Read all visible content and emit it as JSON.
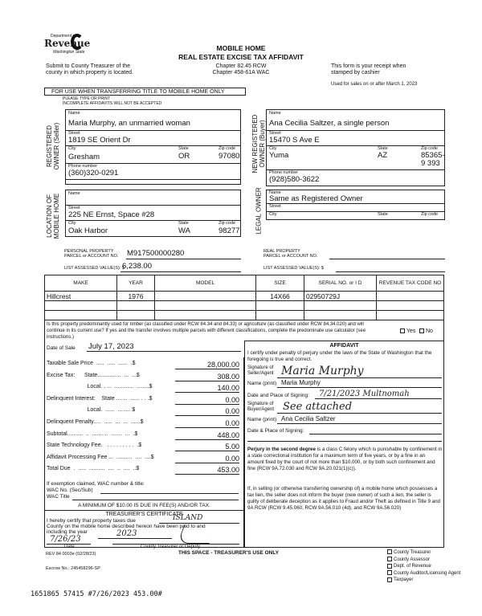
{
  "header": {
    "logo_line1": "Department of",
    "logo_line2": "Revenue",
    "logo_line3": "Washington State",
    "title1": "MOBILE HOME",
    "title2": "REAL ESTATE EXCISE TAX AFFIDAVIT",
    "chapter1": "Chapter 82.45 RCW",
    "chapter2": "Chapter 458-61A WAC",
    "submit1": "Submit to County Treasurer of the",
    "submit2": "county in which property is located.",
    "receipt1": "This form is your receipt when",
    "receipt2": "stamped by cashier",
    "used_for": "Used for sales on or after March 1, 2023",
    "use_when": "FOR USE WHEN TRANSFERRING TITLE TO MOBILE HOME ONLY",
    "please": "PLEASE TYPE OR PRINT",
    "incomplete": "INCOMPLETE AFFIDAVITS WILL NOT BE ACCEPTED"
  },
  "labels": {
    "name": "Name",
    "street": "Street",
    "city": "City",
    "state": "State",
    "zip": "Zip code",
    "phone": "Phone number"
  },
  "seller": {
    "section": "REGISTERED OWNER (Seller)",
    "name": "Maria Murphy, an unmarried woman",
    "street": "1819 SE Orient Dr",
    "city": "Gresham",
    "state": "OR",
    "zip": "97080",
    "phone": "(360)320-0291"
  },
  "buyer": {
    "section": "NEW REGISTERED OWNER (Buyer)",
    "name": "Ana Cecilia Saltzer, a single person",
    "street": "15470 S Ave E",
    "city": "Yuma",
    "state": "AZ",
    "zip": "85365-9 393",
    "phone": "(928)580-3622"
  },
  "location": {
    "section": "LOCATION OF MOBILE HOME",
    "name": "",
    "street": "225 NE Ernst, Space #28",
    "city": "Oak Harbor",
    "state": "WA",
    "zip": "98277"
  },
  "legal_owner": {
    "section": "LEGAL OWNER",
    "name": "Same as Registered Owner",
    "street": "",
    "city": "",
    "state": "",
    "zip": ""
  },
  "parcel": {
    "personal_label1": "PERSONAL PROPERTY",
    "personal_label2": "PARCEL or ACCOUNT NO.",
    "personal_value": "M917500000280",
    "list_label": "LIST ASSESSED VALUE(S): $",
    "list_value": "6,238.00",
    "real_label1": "REAL PROPERTY",
    "real_label2": "PARCEL or ACCOUNT NO.",
    "real_value": "",
    "real_list_label": "LIST ASSESSED VALUE(S): $",
    "real_list_value": ""
  },
  "home_table": {
    "headers": [
      "MAKE",
      "YEAR",
      "MODEL",
      "SIZE",
      "SERIAL NO. or I D",
      "REVENUE TAX CODE NO"
    ],
    "rows": [
      [
        "Hillcrest",
        "1976",
        "",
        "14X66",
        "02950729J",
        ""
      ],
      [
        "",
        "",
        "",
        "",
        "",
        ""
      ],
      [
        "",
        "",
        "",
        "",
        "",
        ""
      ]
    ]
  },
  "timber": {
    "question": "Is this property predominantly used for timber (as classified under RCW 84.34 and 84.33) or agriculture (as classified under RCW 84.34.020) and will continue in its current use? If yes and the transfer involves multiple parcels with different classifications, complete the predominate use calculator (see instructions.)",
    "yes": "Yes",
    "no": "No"
  },
  "sale": {
    "date_label": "Date of Sale",
    "date_value": "July 17, 2023"
  },
  "fees": [
    {
      "label": "Taxable Sale Price  .....  .....  ......  .$",
      "value": "28,000.00"
    },
    {
      "label": "Excise Tax:      State...............  ...  ...$",
      "value": "308.00"
    },
    {
      "label": "                          Local. . ...  ............  ........$",
      "value": "140.00"
    },
    {
      "label": "Delinquent Interest:    State .......  ...... . . .$",
      "value": "0.00"
    },
    {
      "label": "                          Local.  ......  ........ $",
      "value": "0.00"
    },
    {
      "label": "Delinquent Penalty.....  .....  ...  ...  ......$",
      "value": "0.00"
    },
    {
      "label": "Subtotal..........  ..  ..........  .......  ...  .$",
      "value": "448.00"
    },
    {
      "label": "State Technology Fee.   . . . . . . . . .  .$",
      "value": "5.00"
    },
    {
      "label": "Affidavit Processing Fee ...  ..........  ....  ....$",
      "value": "0.00"
    },
    {
      "label": "Total Due  .  .....  ..........  ....  ..  ....  ..$",
      "value": "453.00"
    }
  ],
  "exemption": {
    "intro": "If exemption claimed, WAC number & title:",
    "wac_no": "WAC No. (Sec/Sub)",
    "wac_title": "WAC Title",
    "minimum": "A MINIMUM OF $10.00 IS DUE IN FEE(S) AND/OR TAX."
  },
  "affidavit": {
    "title": "AFFIDAVIT",
    "certify": "I certify under penalty of perjury under the laws of the State of Washington that the foregoing is true and correct.",
    "seller_sig_label1": "Signature of",
    "seller_sig_label2": "Seller/Agent",
    "seller_sig": "Maria Murphy",
    "seller_name_label": "Name (print)",
    "seller_name": "Maria Murphy",
    "seller_date_label": "Date and Place of Signing:",
    "seller_date": "7/21/2023 Multnomah",
    "buyer_sig_label1": "Signature of",
    "buyer_sig_label2": "Buyer/Agent",
    "buyer_sig": "See attached",
    "buyer_name_label": "Name (print)",
    "buyer_name": "Ana Cecilia Saltzer",
    "buyer_date_label": "Date & Place of Signing:",
    "buyer_date": "",
    "perjury_bold": "Perjury in the second degree",
    "perjury": " is a class C felony which is punishable by confinement in a state correctional institution for a maximum term of five years, or by a fine in an amount fixed by the court of not more than $10,000, or by both such confinement and fine (RCW 9A.72.030 and RCW 9A.20.021(1)(c)).",
    "lien": "If, in selling (or otherwise transferring ownership of) a mobile home which possesses a tax lien, the seller does not inform the buyer (new owner) of such a lien, the seller is guilty of deliberate deception as it applies to Fraud and/or Theft as defined in Title 9 and 9A RCW (RCW 9.45.060, RCW 9A.56.010 (4d), and RCW 9A.56.020)"
  },
  "treasurer": {
    "title": "TREASURER'S CERTIFICATE",
    "line1": "I hereby certify that property taxes due",
    "county": "ISLAND",
    "line2": "County on the mobile home described hereon have been paid to and",
    "line3": "including the year",
    "year": "2023",
    "date": "7/26/23",
    "date_label": "Date",
    "sig_label": "County Treasurer or Deputy"
  },
  "footer": {
    "rev": "REV 84 0003e (02/28/23)",
    "treasurer_use": "THIS SPACE - TREASURER'S USE ONLY",
    "escrow": "Escrow No.: 245458296-SP",
    "stamp": "1651865 57415 #7/26/2023 453.00#",
    "copies": [
      "County Treasurer",
      "County Assessor",
      "Dept. of Revenue",
      "County Auditor/Licensing Agent",
      "Taxpayer"
    ]
  }
}
